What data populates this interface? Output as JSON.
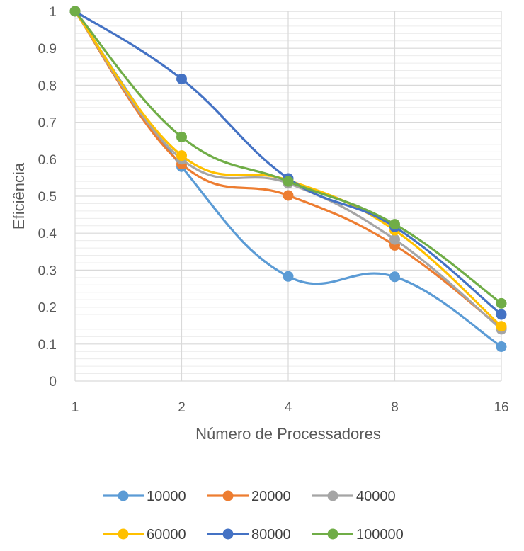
{
  "chart_data": {
    "type": "line",
    "title": "",
    "xlabel": "Número de Processadores",
    "ylabel": "Eficiência",
    "categories": [
      "1",
      "2",
      "4",
      "8",
      "16"
    ],
    "ylim": [
      0,
      1
    ],
    "yticks": [
      "0",
      "0.1",
      "0.2",
      "0.3",
      "0.4",
      "0.5",
      "0.6",
      "0.7",
      "0.8",
      "0.9",
      "1"
    ],
    "grid": true,
    "smooth": true,
    "legend_position": "bottom",
    "series": [
      {
        "name": "10000",
        "color": "#5B9BD5",
        "values": [
          1,
          0.58,
          0.283,
          0.282,
          0.093
        ]
      },
      {
        "name": "20000",
        "color": "#ED7D31",
        "values": [
          1,
          0.587,
          0.502,
          0.367,
          0.143
        ]
      },
      {
        "name": "40000",
        "color": "#A5A5A5",
        "values": [
          1,
          0.6,
          0.535,
          0.383,
          0.14
        ]
      },
      {
        "name": "60000",
        "color": "#FFC000",
        "values": [
          1,
          0.61,
          0.543,
          0.408,
          0.148
        ]
      },
      {
        "name": "80000",
        "color": "#4472C4",
        "values": [
          1,
          0.817,
          0.548,
          0.417,
          0.18
        ]
      },
      {
        "name": "100000",
        "color": "#70AD47",
        "values": [
          1,
          0.66,
          0.54,
          0.424,
          0.21
        ]
      }
    ]
  }
}
